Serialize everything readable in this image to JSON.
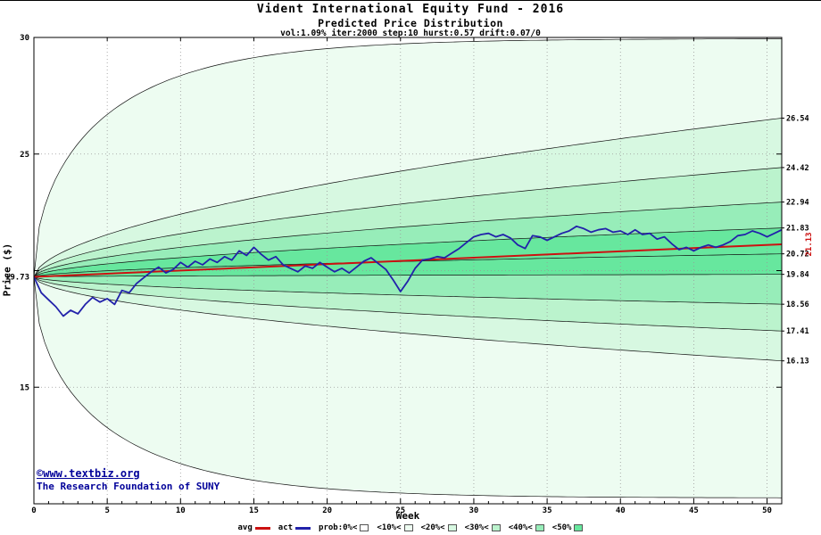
{
  "watermark": {
    "line1": "©www.textbiz.org",
    "line2": "The Research Foundation of SUNY",
    "color": "#000099"
  },
  "legend": {
    "items": [
      {
        "label": "avg",
        "swatch": "line",
        "color": "#cc1111"
      },
      {
        "label": "act",
        "swatch": "line",
        "color": "#2222aa"
      },
      {
        "label": "prob:0%<",
        "swatch": "box",
        "color": "#ffffff"
      },
      {
        "label": "<10%<",
        "swatch": "box",
        "color": "#edfcf1"
      },
      {
        "label": "<20%<",
        "swatch": "box",
        "color": "#d7f8e1"
      },
      {
        "label": "<30%<",
        "swatch": "box",
        "color": "#bbf3cd"
      },
      {
        "label": "<40%<",
        "swatch": "box",
        "color": "#97edb9"
      },
      {
        "label": "<50%",
        "swatch": "box",
        "color": "#67e79e"
      }
    ]
  },
  "chart_data": {
    "type": "area",
    "title": "Vident International Equity Fund - 2016",
    "subtitle": "Predicted Price Distribution",
    "params_line": "vol:1.09% iter:2000 step:10 hurst:0.57 drift:0.07/0",
    "xlabel": "Week",
    "ylabel": "Price ($)",
    "x_range": [
      0,
      51
    ],
    "y_range": [
      10.0,
      30
    ],
    "x_ticks": [
      0,
      5,
      10,
      15,
      20,
      25,
      30,
      35,
      40,
      45,
      50
    ],
    "y_ticks": [
      15,
      20,
      25,
      30
    ],
    "y_labeled_ticks": [
      15,
      25,
      30
    ],
    "grid": true,
    "start_price": 19.73,
    "start_price_label": "19.73",
    "hurst": 0.57,
    "quantile_finals": {
      "q10": 26.54,
      "q20": 24.42,
      "q30": 22.94,
      "q40": 21.83,
      "q50": 20.72,
      "q60": 19.84,
      "q70": 18.56,
      "q80": 17.41,
      "q90": 16.13
    },
    "right_axis_labels": [
      "26.54",
      "24.42",
      "22.94",
      "21.83",
      "20.72",
      "19.84",
      "18.56",
      "17.41",
      "16.13"
    ],
    "envelope": {
      "max_final": 29.95,
      "min_final": 10.25,
      "tau": 8
    },
    "avg_final": 21.13,
    "avg_final_label": "21.13",
    "avg_color": "#cc1111",
    "act_color": "#2222aa",
    "band_colors": {
      "p0": "#ffffff",
      "p10": "#edfcf1",
      "p20": "#d7f8e1",
      "p30": "#bbf3cd",
      "p40": "#97edb9",
      "p50": "#67e79e"
    },
    "grid_color": "#999999",
    "actual_x_step": 0.5,
    "actual_prices": [
      19.73,
      19.05,
      18.75,
      18.45,
      18.05,
      18.3,
      18.15,
      18.55,
      18.85,
      18.65,
      18.8,
      18.55,
      19.15,
      19.05,
      19.45,
      19.7,
      19.95,
      20.15,
      19.9,
      20.05,
      20.35,
      20.15,
      20.4,
      20.25,
      20.5,
      20.35,
      20.6,
      20.45,
      20.85,
      20.65,
      21.0,
      20.7,
      20.45,
      20.6,
      20.25,
      20.1,
      19.95,
      20.2,
      20.1,
      20.35,
      20.15,
      19.95,
      20.1,
      19.9,
      20.15,
      20.4,
      20.55,
      20.3,
      20.05,
      19.6,
      19.1,
      19.55,
      20.1,
      20.45,
      20.5,
      20.6,
      20.55,
      20.75,
      20.95,
      21.2,
      21.45,
      21.55,
      21.6,
      21.45,
      21.55,
      21.4,
      21.1,
      20.95,
      21.5,
      21.45,
      21.3,
      21.45,
      21.6,
      21.7,
      21.9,
      21.8,
      21.65,
      21.75,
      21.8,
      21.65,
      21.7,
      21.55,
      21.75,
      21.55,
      21.6,
      21.35,
      21.45,
      21.15,
      20.9,
      21.0,
      20.85,
      21.0,
      21.1,
      21.0,
      21.1,
      21.25,
      21.5,
      21.55,
      21.7,
      21.6,
      21.45,
      21.6,
      21.75
    ]
  }
}
